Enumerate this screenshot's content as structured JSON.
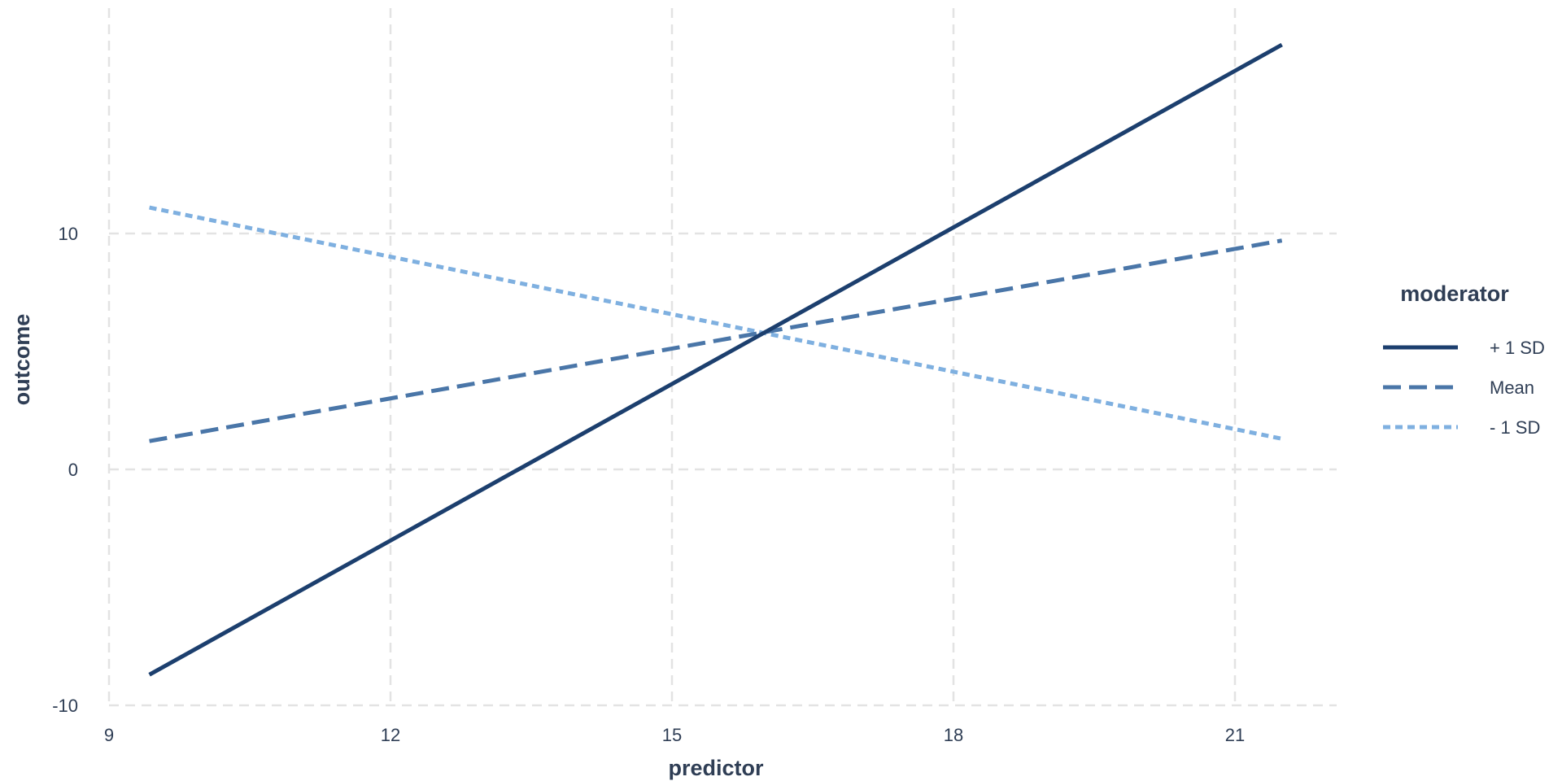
{
  "chart_data": {
    "type": "line",
    "title": "",
    "xlabel": "predictor",
    "ylabel": "outcome",
    "xlim": [
      9,
      22.5
    ],
    "ylim": [
      -10,
      20
    ],
    "x_ticks": [
      9,
      12,
      15,
      18,
      21
    ],
    "y_ticks": [
      -10,
      0,
      10
    ],
    "grid": true,
    "grid_style": "dashed",
    "legend": {
      "title": "moderator",
      "placement": "right"
    },
    "x": [
      9.43,
      21.5
    ],
    "series": [
      {
        "name": "+ 1 SD",
        "values": [
          -8.7,
          18.0
        ],
        "color": "#1c3f6e",
        "dash": "solid"
      },
      {
        "name": "Mean",
        "values": [
          1.2,
          9.7
        ],
        "color": "#4a76a8",
        "dash": "dashed"
      },
      {
        "name": "- 1 SD",
        "values": [
          11.1,
          1.3
        ],
        "color": "#7fb0e0",
        "dash": "dotted"
      }
    ]
  }
}
